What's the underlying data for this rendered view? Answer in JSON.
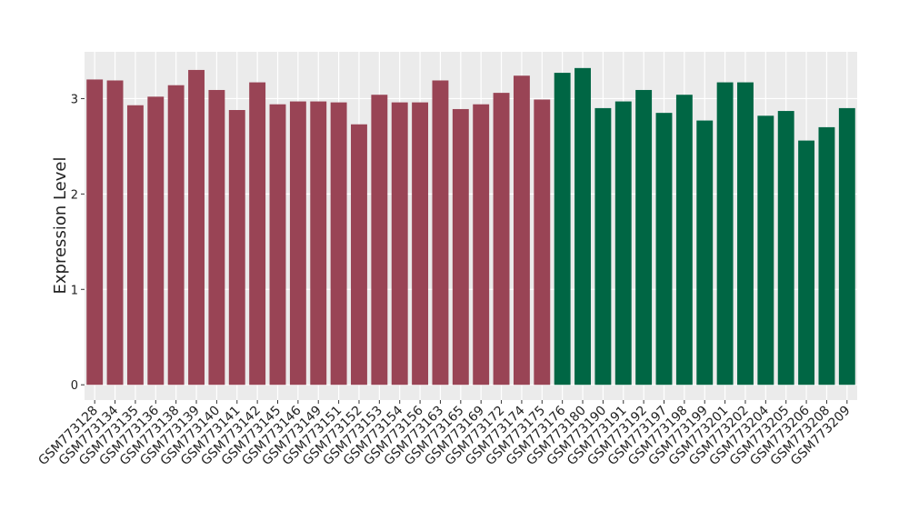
{
  "chart_data": {
    "type": "bar",
    "ylabel": "Expression Level",
    "categories": [
      "GSM773128",
      "GSM773134",
      "GSM773135",
      "GSM773136",
      "GSM773138",
      "GSM773139",
      "GSM773140",
      "GSM773141",
      "GSM773142",
      "GSM773145",
      "GSM773146",
      "GSM773149",
      "GSM773151",
      "GSM773152",
      "GSM773153",
      "GSM773154",
      "GSM773156",
      "GSM773163",
      "GSM773165",
      "GSM773169",
      "GSM773172",
      "GSM773174",
      "GSM773175",
      "GSM773176",
      "GSM773180",
      "GSM773190",
      "GSM773191",
      "GSM773192",
      "GSM773197",
      "GSM773198",
      "GSM773199",
      "GSM773201",
      "GSM773202",
      "GSM773204",
      "GSM773205",
      "GSM773206",
      "GSM773208",
      "GSM773209"
    ],
    "values": [
      3.2,
      3.19,
      2.93,
      3.02,
      3.14,
      3.3,
      3.09,
      2.88,
      3.17,
      2.94,
      2.97,
      2.97,
      2.96,
      2.73,
      3.04,
      2.96,
      2.96,
      3.19,
      2.89,
      2.94,
      3.06,
      3.24,
      2.99,
      3.27,
      3.32,
      2.9,
      2.97,
      3.09,
      2.85,
      3.04,
      2.77,
      3.17,
      3.17,
      2.82,
      2.87,
      2.56,
      2.7,
      2.9
    ],
    "colors": [
      "#994455",
      "#994455",
      "#994455",
      "#994455",
      "#994455",
      "#994455",
      "#994455",
      "#994455",
      "#994455",
      "#994455",
      "#994455",
      "#994455",
      "#994455",
      "#994455",
      "#994455",
      "#994455",
      "#994455",
      "#994455",
      "#994455",
      "#994455",
      "#994455",
      "#994455",
      "#994455",
      "#006644",
      "#006644",
      "#006644",
      "#006644",
      "#006644",
      "#006644",
      "#006644",
      "#006644",
      "#006644",
      "#006644",
      "#006644",
      "#006644",
      "#006644",
      "#006644",
      "#006644"
    ],
    "ylim": [
      -0.16,
      3.49
    ],
    "yticks": [
      0,
      1,
      2,
      3
    ],
    "grid": true
  }
}
